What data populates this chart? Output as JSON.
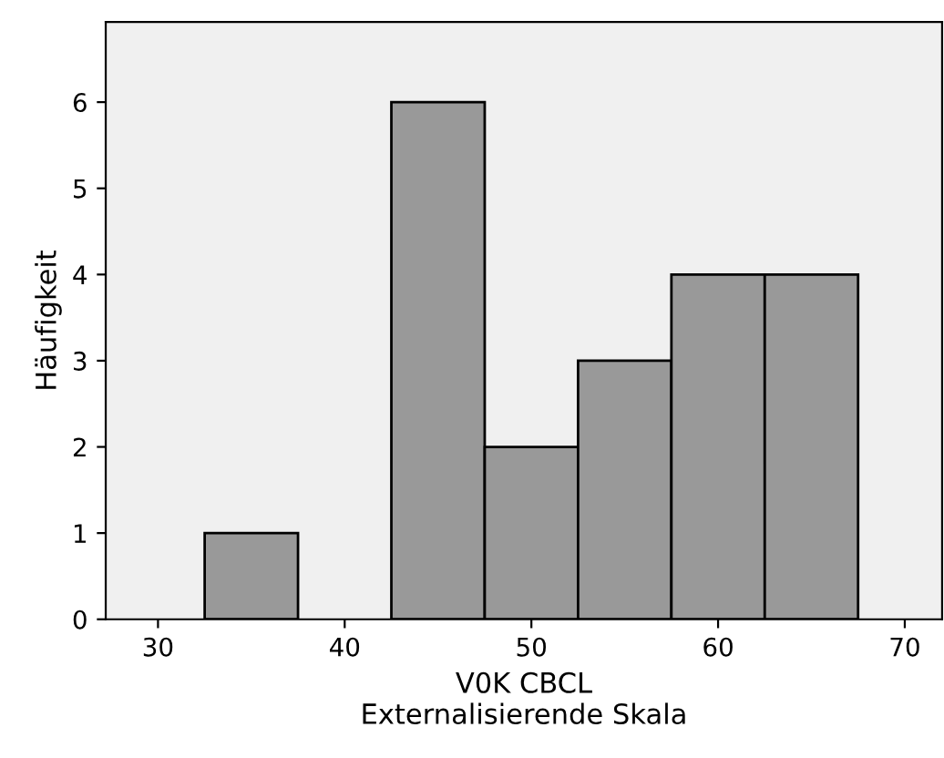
{
  "chart_data": {
    "type": "histogram",
    "xlabel": "V0K CBCL\nExternalisierende Skala",
    "ylabel": "Häufigkeit",
    "bins": [
      32.5,
      37.5,
      42.5,
      47.5,
      52.5,
      57.5,
      62.5,
      67.5
    ],
    "values": [
      1,
      0,
      6,
      2,
      3,
      4,
      4
    ],
    "color": "#999999",
    "xlim": [
      27.2,
      72
    ],
    "xticks": [
      30,
      40,
      50,
      60,
      70
    ],
    "ylim": [
      0,
      6.93
    ],
    "yticks": [
      0,
      1,
      2,
      3,
      4,
      5,
      6
    ],
    "grid": false
  }
}
